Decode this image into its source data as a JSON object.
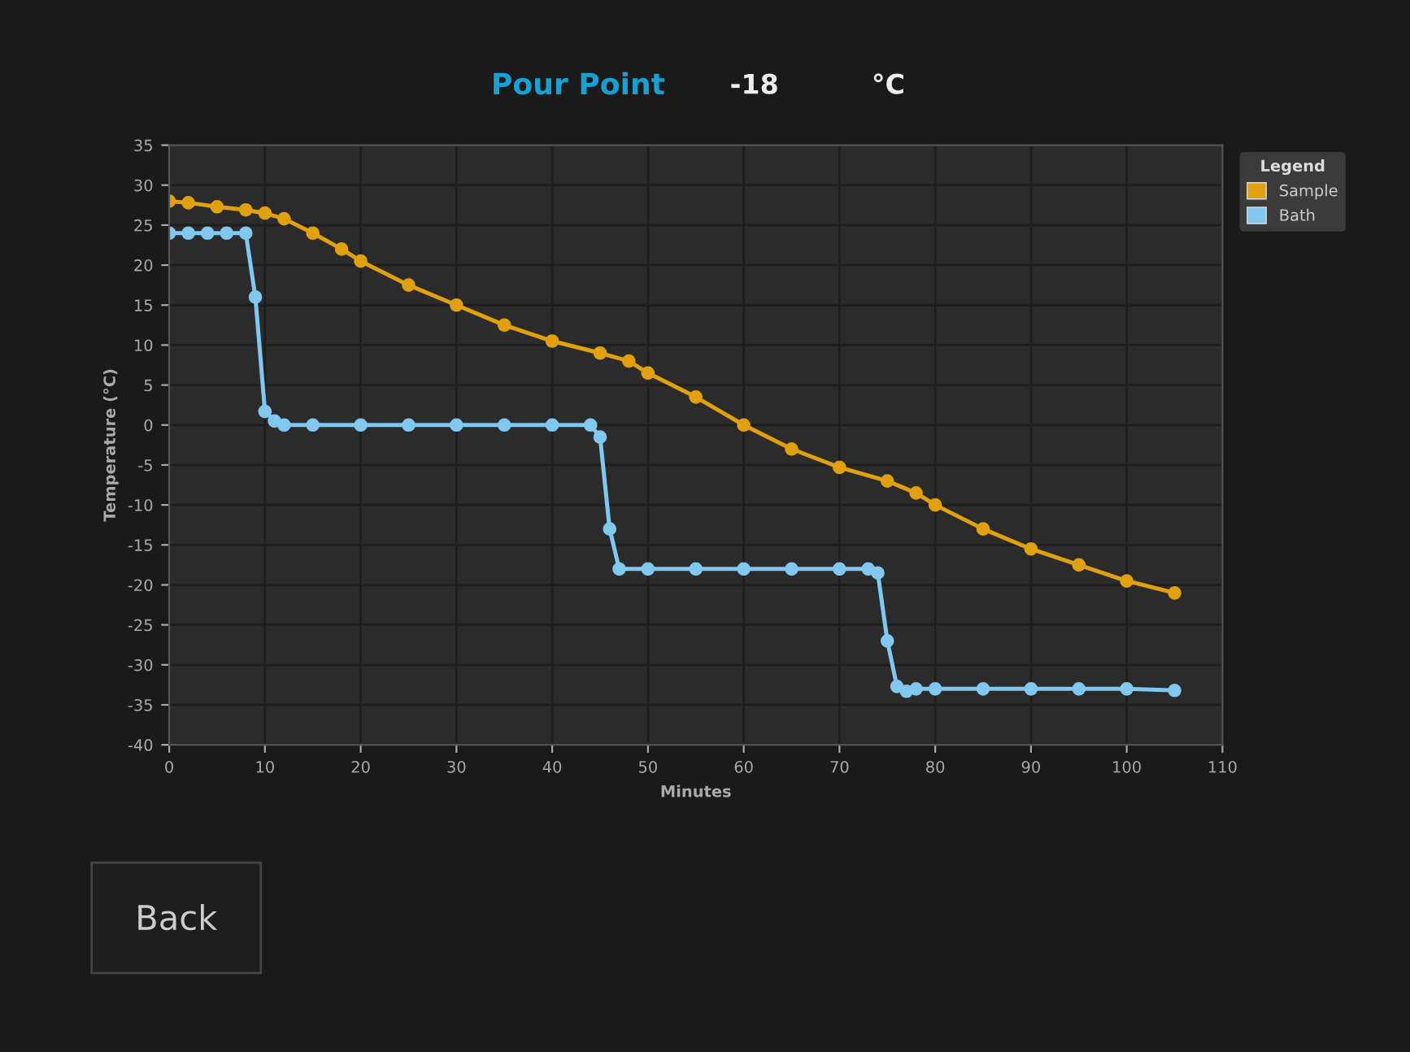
{
  "chart_data": {
    "type": "line",
    "title": "Pour Point",
    "xlabel": "Minutes",
    "ylabel": "Temperature (°C)",
    "legend_title": "Legend",
    "annotations": [
      "-18",
      "°C",
      "Back"
    ],
    "series": [
      {
        "name": "Sample",
        "color": "#e0a010",
        "x": [
          0,
          2,
          5,
          8,
          10,
          12,
          15,
          18,
          20,
          25,
          30,
          35,
          40,
          45,
          48,
          50,
          55,
          60,
          65,
          70,
          75,
          78,
          80,
          85,
          90,
          95,
          100,
          105
        ],
        "values": [
          28,
          27.8,
          27.3,
          26.9,
          26.5,
          25.8,
          24,
          22,
          20.5,
          17.5,
          15,
          12.5,
          10.5,
          9,
          8,
          6.5,
          3.5,
          0,
          -3,
          -5.3,
          -7,
          -8.5,
          -10,
          -13,
          -15.5,
          -17.5,
          -19.5,
          -21
        ]
      },
      {
        "name": "Bath",
        "color": "#80c8f0",
        "x": [
          0,
          2,
          4,
          6,
          8,
          9,
          10,
          11,
          12,
          15,
          20,
          25,
          30,
          35,
          40,
          44,
          45,
          46,
          47,
          50,
          55,
          60,
          65,
          70,
          73,
          74,
          75,
          76,
          77,
          78,
          80,
          85,
          90,
          95,
          100,
          105
        ],
        "values": [
          24,
          24,
          24,
          24,
          24,
          16,
          1.7,
          0.5,
          0,
          0,
          0,
          0,
          0,
          0,
          0,
          0,
          -1.5,
          -13,
          -18,
          -18,
          -18,
          -18,
          -18,
          -18,
          -18,
          -18.5,
          -27,
          -32.7,
          -33.3,
          -33,
          -33,
          -33,
          -33,
          -33,
          -33,
          -33.2
        ]
      }
    ],
    "xlim": [
      0,
      110
    ],
    "xticks": [
      0,
      10,
      20,
      30,
      40,
      50,
      60,
      70,
      80,
      90,
      100,
      110
    ],
    "ylim": [
      -40,
      35
    ],
    "yticks": [
      -40,
      -35,
      -30,
      -25,
      -20,
      -15,
      -10,
      -5,
      0,
      5,
      10,
      15,
      20,
      25,
      30,
      35
    ],
    "grid": true,
    "legend": "right",
    "marker": "circle",
    "line_style": "solid"
  }
}
